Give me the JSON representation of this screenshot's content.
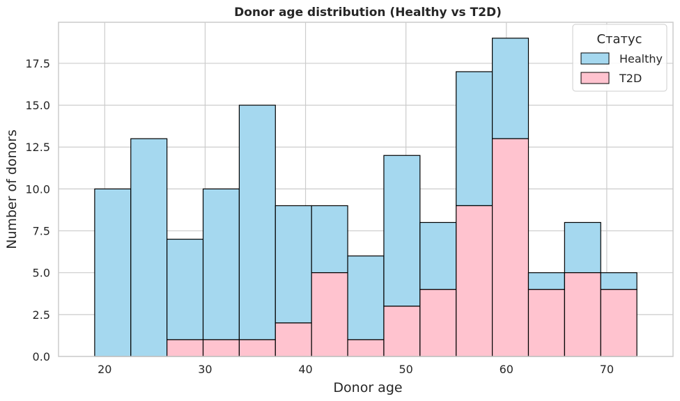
{
  "chart_data": {
    "type": "bar",
    "stacked": true,
    "title": "Donor age distribution (Healthy vs T2D)",
    "xlabel": "Donor age",
    "ylabel": "Number of donors",
    "xlim": [
      15.4,
      76.6
    ],
    "ylim": [
      0,
      19.95
    ],
    "x_ticks": [
      20,
      30,
      40,
      50,
      60,
      70
    ],
    "y_ticks": [
      0.0,
      2.5,
      5.0,
      7.5,
      10.0,
      12.5,
      15.0,
      17.5
    ],
    "y_tick_labels": [
      "0.0",
      "2.5",
      "5.0",
      "7.5",
      "10.0",
      "12.5",
      "15.0",
      "17.5"
    ],
    "bin_edges": [
      19,
      22.6,
      26.2,
      29.8,
      33.4,
      37.0,
      40.6,
      44.2,
      47.8,
      51.4,
      55.0,
      58.6,
      62.2,
      65.8,
      69.4,
      73.0
    ],
    "series": [
      {
        "name": "T2D",
        "values": [
          0,
          0,
          1,
          1,
          1,
          2,
          5,
          1,
          3,
          4,
          9,
          13,
          4,
          5,
          4
        ]
      },
      {
        "name": "Healthy",
        "values": [
          10,
          13,
          6,
          9,
          14,
          7,
          4,
          5,
          9,
          4,
          8,
          6,
          1,
          3,
          1
        ]
      }
    ],
    "grid": true,
    "legend": {
      "title": "Статус",
      "placement": "top-right",
      "entries": [
        "Healthy",
        "T2D"
      ]
    },
    "colors": {
      "Healthy": "#a5d8ef",
      "T2D": "#ffc3cf",
      "edge": "#000000",
      "grid": "#cccccc",
      "axes_border": "#cccccc"
    }
  }
}
